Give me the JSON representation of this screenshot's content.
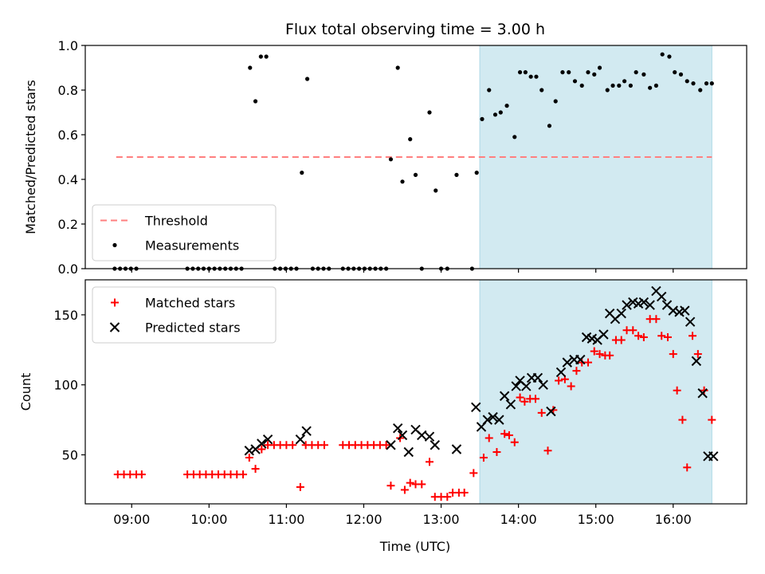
{
  "chart_data": {
    "title": "Flux total observing time = 3.00 h",
    "xlabel": "Time (UTC)",
    "x_ticks": [
      "09:00",
      "10:00",
      "11:00",
      "12:00",
      "13:00",
      "14:00",
      "15:00",
      "16:00"
    ],
    "x_range_hours": [
      8.4,
      16.95
    ],
    "highlight_span_hours": [
      13.5,
      16.5
    ],
    "colors": {
      "highlight": "#add8e6",
      "threshold": "#ff7f7f",
      "measurements": "#000000",
      "matched": "#ff0000",
      "predicted": "#000000"
    },
    "panels": [
      {
        "type": "scatter",
        "ylabel": "Matched/Predicted stars",
        "ylim": [
          0,
          1.0
        ],
        "y_ticks": [
          "0.0",
          "0.2",
          "0.4",
          "0.6",
          "0.8",
          "1.0"
        ],
        "legend_position": "lower-left",
        "threshold": {
          "name": "Threshold",
          "y": 0.5,
          "x_start": 8.8,
          "x_end": 16.5
        },
        "series": [
          {
            "name": "Measurements",
            "marker": "dot",
            "x": [
              8.78,
              8.85,
              8.92,
              8.99,
              9.06,
              9.72,
              9.79,
              9.86,
              9.93,
              10.0,
              10.07,
              10.14,
              10.21,
              10.28,
              10.35,
              10.42,
              10.53,
              10.6,
              10.67,
              10.74,
              10.85,
              10.92,
              10.99,
              11.06,
              11.13,
              11.2,
              11.27,
              11.34,
              11.41,
              11.48,
              11.55,
              11.73,
              11.8,
              11.87,
              11.94,
              12.01,
              12.08,
              12.15,
              12.22,
              12.29,
              12.35,
              12.44,
              12.5,
              12.6,
              12.67,
              12.75,
              12.85,
              12.93,
              13.0,
              13.08,
              13.2,
              13.4,
              13.46,
              13.53,
              13.62,
              13.7,
              13.77,
              13.85,
              13.95,
              14.02,
              14.09,
              14.16,
              14.23,
              14.3,
              14.4,
              14.48,
              14.57,
              14.65,
              14.73,
              14.82,
              14.9,
              14.98,
              15.05,
              15.15,
              15.22,
              15.3,
              15.37,
              15.45,
              15.52,
              15.62,
              15.7,
              15.78,
              15.86,
              15.95,
              16.02,
              16.1,
              16.18,
              16.26,
              16.35,
              16.43,
              16.5
            ],
            "y": [
              0,
              0,
              0,
              0,
              0,
              0,
              0,
              0,
              0,
              0,
              0,
              0,
              0,
              0,
              0,
              0,
              0.9,
              0.75,
              0.95,
              0.95,
              0,
              0,
              0,
              0,
              0,
              0.43,
              0.85,
              0,
              0,
              0,
              0,
              0,
              0,
              0,
              0,
              0,
              0,
              0,
              0,
              0,
              0.49,
              0.9,
              0.39,
              0.58,
              0.42,
              0,
              0.7,
              0.35,
              0,
              0,
              0.42,
              0,
              0.43,
              0.67,
              0.8,
              0.69,
              0.7,
              0.73,
              0.59,
              0.88,
              0.88,
              0.86,
              0.86,
              0.8,
              0.64,
              0.75,
              0.88,
              0.88,
              0.84,
              0.82,
              0.88,
              0.87,
              0.9,
              0.8,
              0.82,
              0.82,
              0.84,
              0.82,
              0.88,
              0.87,
              0.81,
              0.82,
              0.96,
              0.95,
              0.88,
              0.87,
              0.84,
              0.83,
              0.8,
              0.83,
              0.83
            ]
          }
        ]
      },
      {
        "type": "scatter",
        "ylabel": "Count",
        "ylim": [
          15,
          175
        ],
        "y_ticks": [
          "50",
          "100",
          "150"
        ],
        "legend_position": "upper-left",
        "series": [
          {
            "name": "Matched stars",
            "marker": "plus",
            "x": [
              8.82,
              8.9,
              8.98,
              9.06,
              9.13,
              9.72,
              9.8,
              9.88,
              9.96,
              10.04,
              10.12,
              10.2,
              10.28,
              10.36,
              10.44,
              10.52,
              10.6,
              10.68,
              10.76,
              10.84,
              10.92,
              11.0,
              11.08,
              11.18,
              11.25,
              11.33,
              11.41,
              11.49,
              11.73,
              11.81,
              11.89,
              11.97,
              12.05,
              12.13,
              12.21,
              12.29,
              12.35,
              12.47,
              12.53,
              12.6,
              12.67,
              12.75,
              12.85,
              12.92,
              13.0,
              13.08,
              13.15,
              13.23,
              13.3,
              13.42,
              13.55,
              13.62,
              13.72,
              13.82,
              13.88,
              13.95,
              14.02,
              14.08,
              14.15,
              14.22,
              14.3,
              14.38,
              14.45,
              14.52,
              14.6,
              14.68,
              14.75,
              14.82,
              14.9,
              14.98,
              15.05,
              15.12,
              15.18,
              15.26,
              15.33,
              15.4,
              15.48,
              15.55,
              15.62,
              15.7,
              15.78,
              15.85,
              15.93,
              16.0,
              16.05,
              16.12,
              16.18,
              16.25,
              16.32,
              16.4,
              16.5
            ],
            "y": [
              36,
              36,
              36,
              36,
              36,
              36,
              36,
              36,
              36,
              36,
              36,
              36,
              36,
              36,
              36,
              48,
              40,
              54,
              57,
              57,
              57,
              57,
              57,
              27,
              57,
              57,
              57,
              57,
              57,
              57,
              57,
              57,
              57,
              57,
              57,
              57,
              28,
              62,
              25,
              30,
              29,
              29,
              45,
              20,
              20,
              20,
              23,
              23,
              23,
              37,
              48,
              62,
              52,
              65,
              64,
              59,
              91,
              88,
              90,
              90,
              80,
              53,
              82,
              103,
              104,
              99,
              110,
              116,
              116,
              124,
              122,
              121,
              121,
              132,
              132,
              139,
              139,
              135,
              134,
              147,
              147,
              135,
              134,
              122,
              96,
              75,
              41,
              135,
              122,
              96,
              75
            ],
            "y_note": ""
          },
          {
            "name": "Predicted stars",
            "marker": "x",
            "x": [
              10.52,
              10.6,
              10.68,
              10.76,
              11.18,
              11.26,
              12.35,
              12.44,
              12.5,
              12.58,
              12.67,
              12.75,
              12.85,
              12.92,
              13.2,
              13.45,
              13.52,
              13.6,
              13.67,
              13.75,
              13.82,
              13.9,
              13.97,
              14.02,
              14.1,
              14.17,
              14.25,
              14.32,
              14.42,
              14.55,
              14.63,
              14.72,
              14.8,
              14.88,
              14.95,
              15.02,
              15.1,
              15.18,
              15.25,
              15.33,
              15.4,
              15.48,
              15.55,
              15.62,
              15.7,
              15.78,
              15.85,
              15.92,
              16.0,
              16.08,
              16.15,
              16.22,
              16.3,
              16.38,
              16.45,
              16.52
            ],
            "y": [
              53,
              54,
              58,
              61,
              61,
              67,
              57,
              69,
              64,
              52,
              68,
              64,
              63,
              57,
              54,
              84,
              70,
              75,
              77,
              75,
              92,
              86,
              99,
              103,
              99,
              105,
              105,
              100,
              81,
              109,
              116,
              118,
              118,
              134,
              133,
              132,
              136,
              151,
              147,
              151,
              157,
              159,
              158,
              159,
              157,
              167,
              163,
              157,
              153,
              152,
              153,
              145,
              117,
              94,
              49,
              49
            ]
          }
        ]
      }
    ]
  }
}
